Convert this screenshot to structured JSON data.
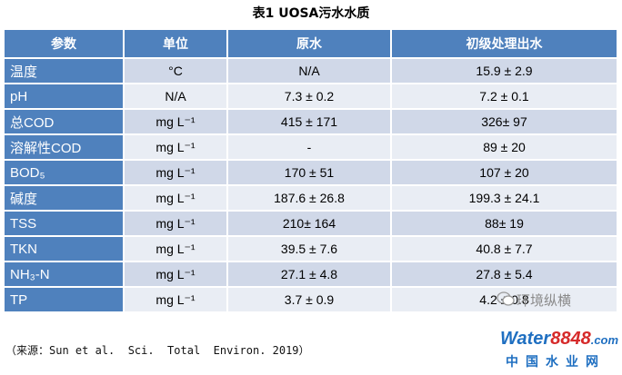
{
  "title": "表1 UOSA污水水质",
  "table": {
    "header": [
      "参数",
      "单位",
      "原水",
      "初级处理出水"
    ],
    "rows": [
      [
        "温度",
        "°C",
        "N/A",
        "15.9 ± 2.9"
      ],
      [
        "pH",
        "N/A",
        "7.3 ± 0.2",
        "7.2 ± 0.1"
      ],
      [
        "总COD",
        "mg L⁻¹",
        "415 ± 171",
        "326± 97"
      ],
      [
        "溶解性COD",
        "mg L⁻¹",
        "-",
        "89 ± 20"
      ],
      [
        "BOD₅",
        "mg L⁻¹",
        "170 ± 51",
        "107 ± 20"
      ],
      [
        "碱度",
        "mg L⁻¹",
        "187.6 ± 26.8",
        "199.3 ± 24.1"
      ],
      [
        "TSS",
        "mg L⁻¹",
        "210± 164",
        "88± 19"
      ],
      [
        "TKN",
        "mg L⁻¹",
        "39.5 ± 7.6",
        "40.8 ± 7.7"
      ],
      [
        "NH₃-N",
        "mg L⁻¹",
        "27.1 ± 4.8",
        "27.8 ± 5.4"
      ],
      [
        "TP",
        "mg L⁻¹",
        "3.7 ± 0.9",
        "4.2 ± 0.8"
      ]
    ]
  },
  "source": "（来源：Sun et al.  Sci.  Total  Environ. 2019）",
  "watermark": "环境纵横",
  "logo": {
    "brand": "Water",
    "number": "8848",
    "domain": ".com",
    "name": "中国水业网"
  }
}
